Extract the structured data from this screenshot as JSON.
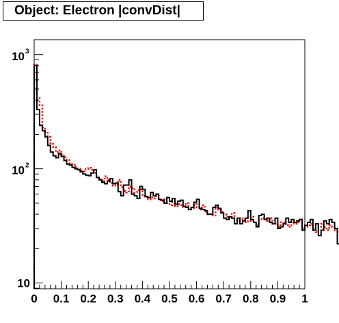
{
  "title": "Object: Electron |convDist|",
  "chart_data": {
    "type": "step",
    "title": "Object: Electron |convDist|",
    "xlabel": "",
    "ylabel": "",
    "xlim": [
      0,
      1
    ],
    "ylim": [
      8.9,
      1350
    ],
    "yscale": "log",
    "grid": false,
    "x_ticks": [
      "0",
      "0.1",
      "0.2",
      "0.3",
      "0.4",
      "0.5",
      "0.6",
      "0.7",
      "0.8",
      "0.9",
      "1"
    ],
    "y_ticks": [
      {
        "value": 10,
        "base": "10",
        "exp": ""
      },
      {
        "value": 100,
        "base": "10",
        "exp": "2"
      },
      {
        "value": 1000,
        "base": "10",
        "exp": "3"
      }
    ],
    "bin_width": 0.01,
    "series": [
      {
        "color": "#000000",
        "style": "solid",
        "values": [
          800,
          330,
          240,
          215,
          190,
          160,
          140,
          130,
          125,
          135,
          128,
          118,
          110,
          108,
          103,
          100,
          98,
          94,
          90,
          88,
          87,
          92,
          98,
          84,
          80,
          76,
          74,
          78,
          82,
          74,
          75,
          63,
          58,
          72,
          72,
          80,
          60,
          58,
          55,
          70,
          66,
          57,
          56,
          62,
          58,
          60,
          54,
          53,
          50,
          56,
          52,
          55,
          49,
          52,
          53,
          47,
          46,
          44,
          46,
          51,
          54,
          45,
          44,
          43,
          40,
          40,
          46,
          48,
          45,
          41,
          37,
          36,
          38,
          37,
          33,
          37,
          33,
          35,
          37,
          43,
          36,
          34,
          31,
          39,
          40,
          36,
          37,
          34,
          33,
          37,
          30,
          31,
          33,
          37,
          34,
          36,
          34,
          35,
          36,
          29,
          32,
          34,
          36,
          29,
          33,
          26,
          29,
          35,
          33,
          36,
          34,
          30,
          22,
          32,
          33,
          34,
          32,
          26,
          29,
          31,
          34,
          27,
          30,
          22,
          27,
          25,
          29,
          26,
          28,
          30,
          28,
          26,
          22,
          28,
          28,
          27,
          31,
          27,
          28,
          32,
          24,
          25,
          20,
          24,
          32,
          28,
          30,
          26,
          33,
          24,
          31,
          28,
          24,
          33,
          31,
          22,
          18,
          27,
          31,
          27,
          25,
          32,
          26,
          27,
          33,
          24,
          26,
          28,
          23,
          26,
          24,
          25,
          30,
          24,
          28,
          21,
          18,
          26,
          22,
          30,
          28,
          24,
          25,
          22,
          23,
          26,
          24,
          22,
          22,
          26,
          24,
          24,
          26,
          20,
          21,
          24,
          26,
          28,
          26,
          34
        ]
      },
      {
        "color": "#ff0000",
        "style": "dotted",
        "values": [
          820,
          420,
          360,
          230,
          210,
          190,
          165,
          155,
          140,
          145,
          133,
          126,
          120,
          112,
          108,
          104,
          100,
          96,
          95,
          100,
          102,
          98,
          92,
          84,
          82,
          78,
          86,
          80,
          75,
          71,
          73,
          80,
          69,
          64,
          62,
          70,
          68,
          62,
          65,
          66,
          58,
          57,
          54,
          56,
          55,
          60,
          53,
          52,
          54,
          50,
          48,
          51,
          47,
          49,
          48,
          46,
          50,
          44,
          45,
          49,
          46,
          44,
          48,
          42,
          40,
          40,
          39,
          46,
          44,
          42,
          40,
          38,
          37,
          41,
          36,
          35,
          37,
          36,
          34,
          35,
          38,
          34,
          32,
          36,
          37,
          36,
          35,
          37,
          33,
          33,
          31,
          34,
          34,
          32,
          31,
          34,
          33,
          34,
          36,
          30,
          31,
          32,
          33,
          30,
          28,
          31,
          33,
          31,
          29,
          32,
          31,
          29,
          28,
          30,
          31,
          30,
          33,
          29,
          30,
          26,
          27,
          29,
          28,
          30,
          26,
          28,
          27,
          25,
          26,
          28,
          27,
          29,
          28,
          25,
          26,
          27,
          25,
          26,
          24,
          28,
          26,
          25,
          24,
          26,
          27,
          25,
          24,
          26,
          23,
          25,
          24,
          25,
          27,
          26,
          25,
          23,
          24,
          26,
          25,
          24,
          22,
          26,
          25,
          26,
          24,
          23,
          25,
          24,
          26,
          25,
          23,
          24,
          22,
          25,
          24,
          23,
          22,
          24,
          25,
          23,
          24,
          22,
          23,
          24,
          22,
          24,
          23,
          25,
          22,
          23,
          24,
          23,
          22,
          24,
          23,
          25,
          24,
          26,
          25,
          26
        ]
      }
    ]
  }
}
